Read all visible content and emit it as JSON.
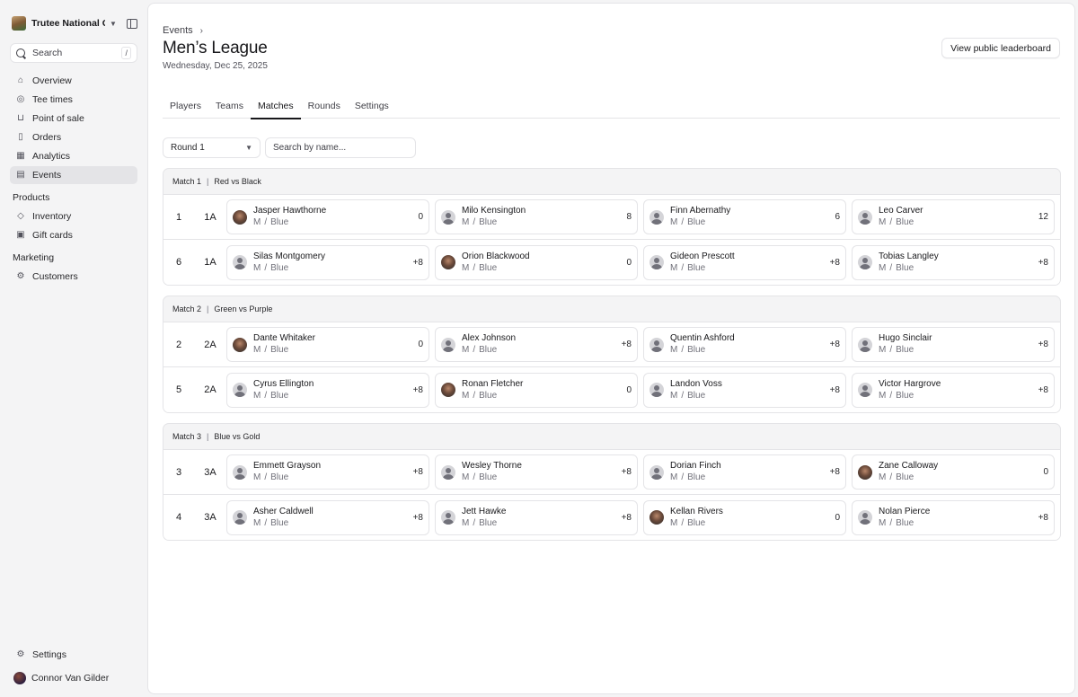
{
  "sidebar": {
    "org_name": "Trutee National G...",
    "search_placeholder": "Search",
    "search_shortcut": "/",
    "nav": [
      {
        "label": "Overview",
        "icon": "home-icon"
      },
      {
        "label": "Tee times",
        "icon": "map-pin-icon"
      },
      {
        "label": "Point of sale",
        "icon": "cart-icon"
      },
      {
        "label": "Orders",
        "icon": "file-icon"
      },
      {
        "label": "Analytics",
        "icon": "chart-icon"
      },
      {
        "label": "Events",
        "icon": "calendar-icon",
        "active": true
      }
    ],
    "products_section": "Products",
    "products": [
      {
        "label": "Inventory",
        "icon": "tag-icon"
      },
      {
        "label": "Gift cards",
        "icon": "gift-icon"
      }
    ],
    "marketing_section": "Marketing",
    "marketing": [
      {
        "label": "Customers",
        "icon": "customers-icon"
      }
    ],
    "settings_label": "Settings",
    "user_name": "Connor Van Gilder"
  },
  "header": {
    "breadcrumb": "Events",
    "title": "Men’s League",
    "date": "Wednesday, Dec 25, 2025",
    "leaderboard_button": "View public leaderboard"
  },
  "tabs": [
    {
      "label": "Players"
    },
    {
      "label": "Teams"
    },
    {
      "label": "Matches",
      "active": true
    },
    {
      "label": "Rounds"
    },
    {
      "label": "Settings"
    }
  ],
  "filters": {
    "round_value": "Round 1",
    "name_placeholder": "Search by name..."
  },
  "matches": [
    {
      "label": "Match 1",
      "teams": "Red vs Black",
      "rows": [
        {
          "num": "1",
          "group": "1A",
          "players": [
            {
              "name": "Jasper Hawthorne",
              "gender": "M",
              "tee": "Blue",
              "score": "0",
              "photo": true
            },
            {
              "name": "Milo Kensington",
              "gender": "M",
              "tee": "Blue",
              "score": "8",
              "photo": false
            },
            {
              "name": "Finn Abernathy",
              "gender": "M",
              "tee": "Blue",
              "score": "6",
              "photo": false
            },
            {
              "name": "Leo Carver",
              "gender": "M",
              "tee": "Blue",
              "score": "12",
              "photo": false
            }
          ]
        },
        {
          "num": "6",
          "group": "1A",
          "players": [
            {
              "name": "Silas Montgomery",
              "gender": "M",
              "tee": "Blue",
              "score": "+8",
              "photo": false
            },
            {
              "name": "Orion Blackwood",
              "gender": "M",
              "tee": "Blue",
              "score": "0",
              "photo": true
            },
            {
              "name": "Gideon Prescott",
              "gender": "M",
              "tee": "Blue",
              "score": "+8",
              "photo": false
            },
            {
              "name": "Tobias Langley",
              "gender": "M",
              "tee": "Blue",
              "score": "+8",
              "photo": false
            }
          ]
        }
      ]
    },
    {
      "label": "Match 2",
      "teams": "Green vs Purple",
      "rows": [
        {
          "num": "2",
          "group": "2A",
          "players": [
            {
              "name": "Dante Whitaker",
              "gender": "M",
              "tee": "Blue",
              "score": "0",
              "photo": true
            },
            {
              "name": "Alex Johnson",
              "gender": "M",
              "tee": "Blue",
              "score": "+8",
              "photo": false
            },
            {
              "name": "Quentin Ashford",
              "gender": "M",
              "tee": "Blue",
              "score": "+8",
              "photo": false
            },
            {
              "name": "Hugo Sinclair",
              "gender": "M",
              "tee": "Blue",
              "score": "+8",
              "photo": false
            }
          ]
        },
        {
          "num": "5",
          "group": "2A",
          "players": [
            {
              "name": "Cyrus Ellington",
              "gender": "M",
              "tee": "Blue",
              "score": "+8",
              "photo": false
            },
            {
              "name": "Ronan Fletcher",
              "gender": "M",
              "tee": "Blue",
              "score": "0",
              "photo": true
            },
            {
              "name": "Landon Voss",
              "gender": "M",
              "tee": "Blue",
              "score": "+8",
              "photo": false
            },
            {
              "name": "Victor Hargrove",
              "gender": "M",
              "tee": "Blue",
              "score": "+8",
              "photo": false
            }
          ]
        }
      ]
    },
    {
      "label": "Match 3",
      "teams": "Blue vs Gold",
      "rows": [
        {
          "num": "3",
          "group": "3A",
          "players": [
            {
              "name": "Emmett Grayson",
              "gender": "M",
              "tee": "Blue",
              "score": "+8",
              "photo": false
            },
            {
              "name": "Wesley Thorne",
              "gender": "M",
              "tee": "Blue",
              "score": "+8",
              "photo": false
            },
            {
              "name": "Dorian Finch",
              "gender": "M",
              "tee": "Blue",
              "score": "+8",
              "photo": false
            },
            {
              "name": "Zane Calloway",
              "gender": "M",
              "tee": "Blue",
              "score": "0",
              "photo": true
            }
          ]
        },
        {
          "num": "4",
          "group": "3A",
          "players": [
            {
              "name": "Asher Caldwell",
              "gender": "M",
              "tee": "Blue",
              "score": "+8",
              "photo": false
            },
            {
              "name": "Jett Hawke",
              "gender": "M",
              "tee": "Blue",
              "score": "+8",
              "photo": false
            },
            {
              "name": "Kellan Rivers",
              "gender": "M",
              "tee": "Blue",
              "score": "0",
              "photo": true
            },
            {
              "name": "Nolan Pierce",
              "gender": "M",
              "tee": "Blue",
              "score": "+8",
              "photo": false
            }
          ]
        }
      ]
    }
  ]
}
